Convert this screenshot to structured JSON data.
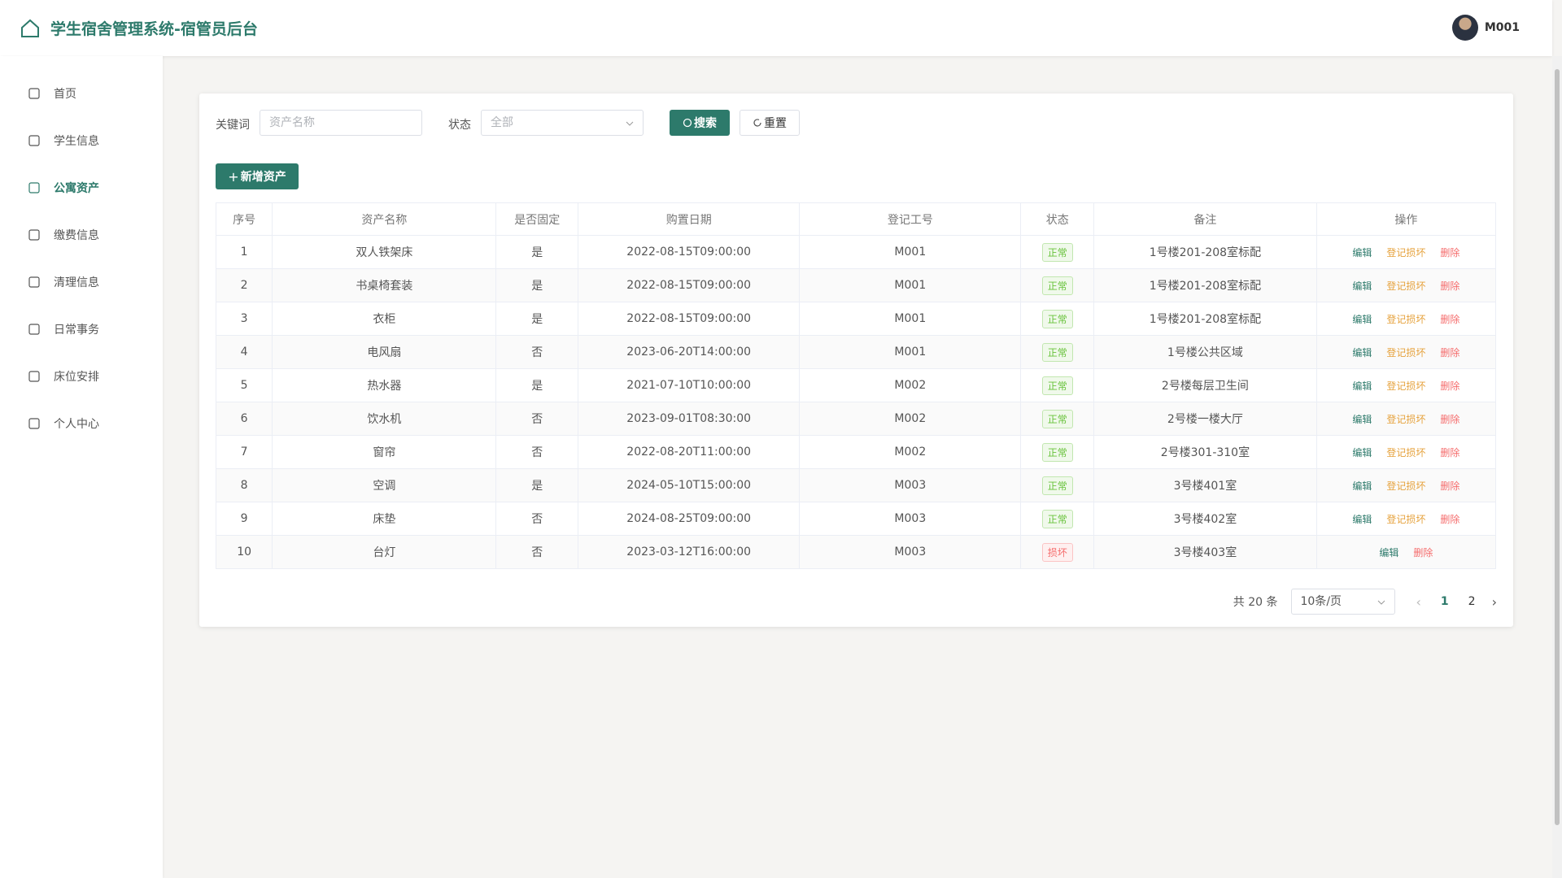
{
  "header": {
    "title": "学生宿舍管理系统-宿管员后台",
    "user": "M001"
  },
  "sidebar": {
    "items": [
      "首页",
      "学生信息",
      "公寓资产",
      "缴费信息",
      "清理信息",
      "日常事务",
      "床位安排",
      "个人中心"
    ],
    "active": 2
  },
  "search": {
    "keyword_label": "关键词",
    "keyword_placeholder": "资产名称",
    "status_label": "状态",
    "status_value": "全部",
    "search_button": "搜索",
    "reset_button": "重置",
    "add_button": "新增资产"
  },
  "table": {
    "headers": [
      "序号",
      "资产名称",
      "是否固定",
      "购置日期",
      "登记工号",
      "状态",
      "备注",
      "操作"
    ],
    "rows": [
      [
        1,
        "双人铁架床",
        "是",
        "2022-08-15T09:00:00",
        "M001",
        "正常",
        "1号楼201-208室标配",
        [
          "编辑",
          "登记损坏",
          "删除"
        ]
      ],
      [
        2,
        "书桌椅套装",
        "是",
        "2022-08-15T09:00:00",
        "M001",
        "正常",
        "1号楼201-208室标配",
        [
          "编辑",
          "登记损坏",
          "删除"
        ]
      ],
      [
        3,
        "衣柜",
        "是",
        "2022-08-15T09:00:00",
        "M001",
        "正常",
        "1号楼201-208室标配",
        [
          "编辑",
          "登记损坏",
          "删除"
        ]
      ],
      [
        4,
        "电风扇",
        "否",
        "2023-06-20T14:00:00",
        "M001",
        "正常",
        "1号楼公共区域",
        [
          "编辑",
          "登记损坏",
          "删除"
        ]
      ],
      [
        5,
        "热水器",
        "是",
        "2021-07-10T10:00:00",
        "M002",
        "正常",
        "2号楼每层卫生间",
        [
          "编辑",
          "登记损坏",
          "删除"
        ]
      ],
      [
        6,
        "饮水机",
        "否",
        "2023-09-01T08:30:00",
        "M002",
        "正常",
        "2号楼一楼大厅",
        [
          "编辑",
          "登记损坏",
          "删除"
        ]
      ],
      [
        7,
        "窗帘",
        "否",
        "2022-08-20T11:00:00",
        "M002",
        "正常",
        "2号楼301-310室",
        [
          "编辑",
          "登记损坏",
          "删除"
        ]
      ],
      [
        8,
        "空调",
        "是",
        "2024-05-10T15:00:00",
        "M003",
        "正常",
        "3号楼401室",
        [
          "编辑",
          "登记损坏",
          "删除"
        ]
      ],
      [
        9,
        "床垫",
        "否",
        "2024-08-25T09:00:00",
        "M003",
        "正常",
        "3号楼402室",
        [
          "编辑",
          "登记损坏",
          "删除"
        ]
      ],
      [
        10,
        "台灯",
        "否",
        "2023-03-12T16:00:00",
        "M003",
        "损坏",
        "3号楼403室",
        [
          "编辑",
          "删除"
        ]
      ]
    ]
  },
  "pagination": {
    "total": "共 20 条",
    "page_size": "10条/页",
    "pages": [
      1,
      2
    ]
  }
}
